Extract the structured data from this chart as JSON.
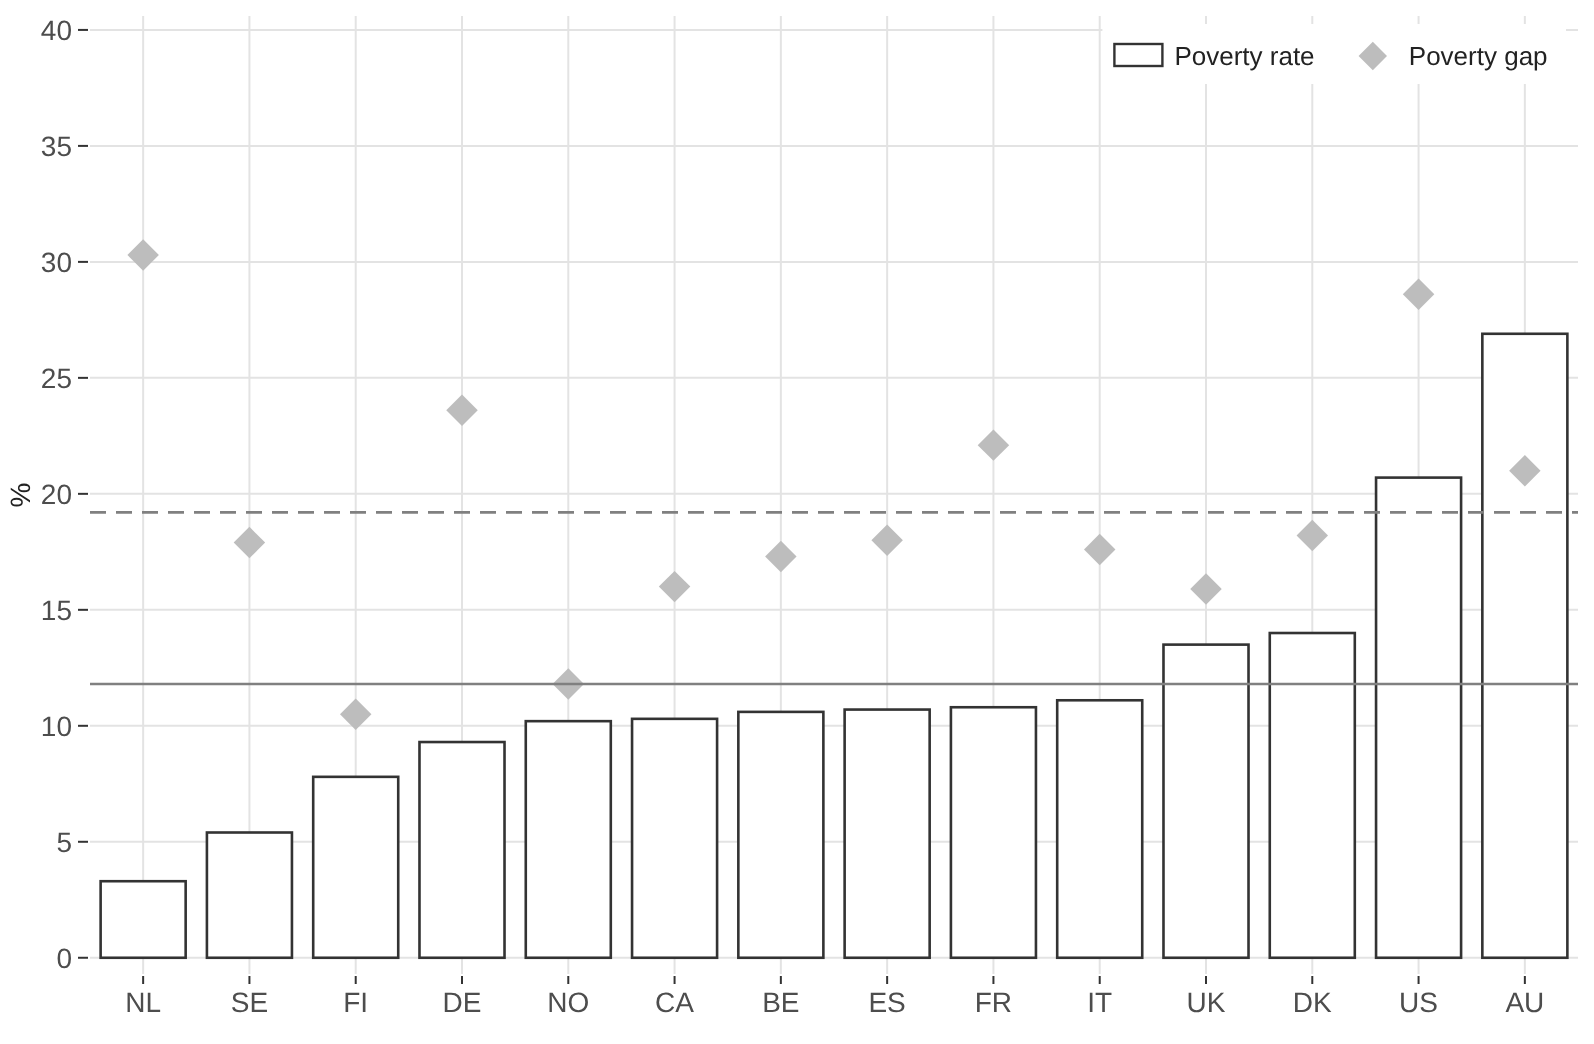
{
  "chart_data": {
    "type": "bar",
    "ylabel": "%",
    "categories": [
      "NL",
      "SE",
      "FI",
      "DE",
      "NO",
      "CA",
      "BE",
      "ES",
      "FR",
      "IT",
      "UK",
      "DK",
      "US",
      "AU"
    ],
    "series": [
      {
        "name": "Poverty rate",
        "color": "#ffffff",
        "values": [
          3.3,
          5.4,
          7.8,
          9.3,
          10.2,
          10.3,
          10.6,
          10.7,
          10.8,
          11.1,
          13.5,
          14.0,
          20.7,
          26.9
        ]
      },
      {
        "name": "Poverty gap",
        "type": "scatter",
        "marker": "diamond",
        "color": "#bdbdbd",
        "values": [
          30.3,
          17.9,
          10.5,
          23.6,
          11.8,
          16.0,
          17.3,
          18.0,
          22.1,
          17.6,
          15.9,
          18.2,
          28.6,
          21.0
        ]
      }
    ],
    "ref_lines": [
      {
        "axis": "y",
        "value": 11.8,
        "line_style": "solid",
        "color": "#808080"
      },
      {
        "axis": "y",
        "value": 19.2,
        "line_style": "dashed",
        "color": "#808080"
      }
    ],
    "ylim": [
      -0.7,
      40.6
    ],
    "yticks": [
      0,
      5,
      10,
      15,
      20,
      25,
      30,
      35,
      40
    ],
    "grid": true,
    "legend": "top right"
  }
}
